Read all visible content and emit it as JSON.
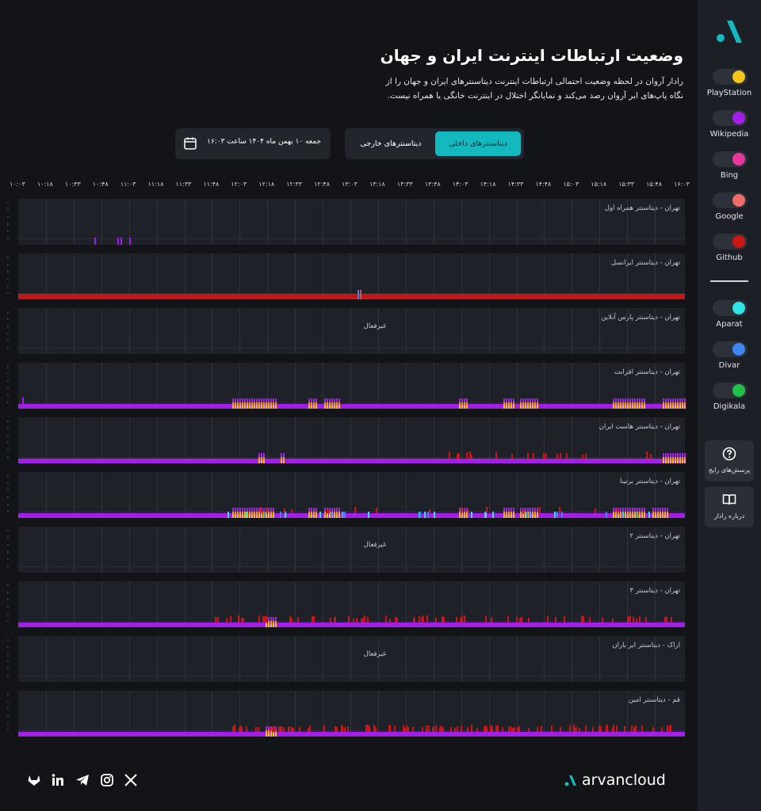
{
  "header": {
    "title": "وضعیت ارتباطات اینترنت ایران و جهان",
    "description": "رادار آروان در لحظه وضعیت احتمالی ارتباطات اینترنت دیتاسنترهای ایران و جهان را از نگاه پاپ‌های ابر آروان رصد می‌کند و نمایانگر اختلال در اینترنت خانگی یا همراه نیست."
  },
  "controls": {
    "date": "جمعه ۱۰ بهمن ماه ۱۴۰۴ ساعت ۱۶:۰۳",
    "tab_domestic": "دیتاسنترهای داخلی",
    "tab_foreign": "دیتاسنترهای خارجی"
  },
  "sidebar": {
    "services": [
      {
        "label": "PlayStation",
        "color": "#f5c518"
      },
      {
        "label": "Wikipedia",
        "color": "#a31ee8"
      },
      {
        "label": "Bing",
        "color": "#e8369c"
      },
      {
        "label": "Google",
        "color": "#f26b6b"
      },
      {
        "label": "Github",
        "color": "#cc1616"
      },
      {
        "label": "Aparat",
        "color": "#2ee6e6"
      },
      {
        "label": "Divar",
        "color": "#3d86f2"
      },
      {
        "label": "Digikala",
        "color": "#22c24a"
      }
    ],
    "faq": "پرسش‌های رایج",
    "about": "درباره رادار"
  },
  "axis": {
    "ticks": [
      "۱۰:۰۳",
      "۱۰:۱۸",
      "۱۰:۳۳",
      "۱۰:۴۸",
      "۱۱:۰۳",
      "۱۱:۱۸",
      "۱۱:۳۳",
      "۱۱:۴۸",
      "۱۲:۰۳",
      "۱۲:۱۸",
      "۱۲:۳۳",
      "۱۲:۴۸",
      "۱۳:۰۳",
      "۱۳:۱۸",
      "۱۳:۳۳",
      "۱۳:۴۸",
      "۱۴:۰۳",
      "۱۴:۱۸",
      "۱۴:۳۳",
      "۱۴:۴۸",
      "۱۵:۰۳",
      "۱۵:۱۸",
      "۱۵:۳۳",
      "۱۵:۴۸",
      "۱۶:۰۳"
    ]
  },
  "panels": [
    {
      "label": "تهران - دیتاسنتر همراه اول",
      "status": ""
    },
    {
      "label": "تهران - دیتاسنتر ایرانسل",
      "status": ""
    },
    {
      "label": "تهران - دیتاسنتر پارس آنلاین",
      "status": "غیرفعال"
    },
    {
      "label": "تهران - دیتاسنتر افرانت",
      "status": ""
    },
    {
      "label": "تهران - دیتاسنتر هاست ایران",
      "status": ""
    },
    {
      "label": "تهران - دیتاسنتر برتینا",
      "status": ""
    },
    {
      "label": "تهران - دیتاسنتر ۲",
      "status": "غیرفعال"
    },
    {
      "label": "تهران - دیتاسنتر ۳",
      "status": ""
    },
    {
      "label": "اراک - دیتاسنتر ابر باران",
      "status": "غیرفعال"
    },
    {
      "label": "قم - دیتاسنتر امین",
      "status": ""
    }
  ],
  "footer": {
    "brand": "arvancloud",
    "social": [
      "x-icon",
      "instagram-icon",
      "telegram-icon",
      "linkedin-icon",
      "gitlab-icon"
    ]
  }
}
